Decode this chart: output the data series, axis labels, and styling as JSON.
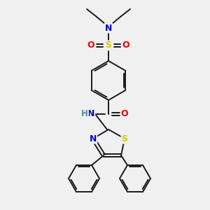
{
  "bg_color": "#f0f0f0",
  "bond_color": "#1a1a1a",
  "atom_colors": {
    "N": "#0000dd",
    "S_sulfonyl": "#cccc00",
    "O": "#ee0000",
    "S_thiazole": "#cccc00",
    "N_thiazole": "#0000dd",
    "H": "#4a9090",
    "C": "#1a1a1a"
  },
  "figsize": [
    3.0,
    3.0
  ],
  "dpi": 100,
  "lw": 1.4,
  "fontsize": 8.5
}
